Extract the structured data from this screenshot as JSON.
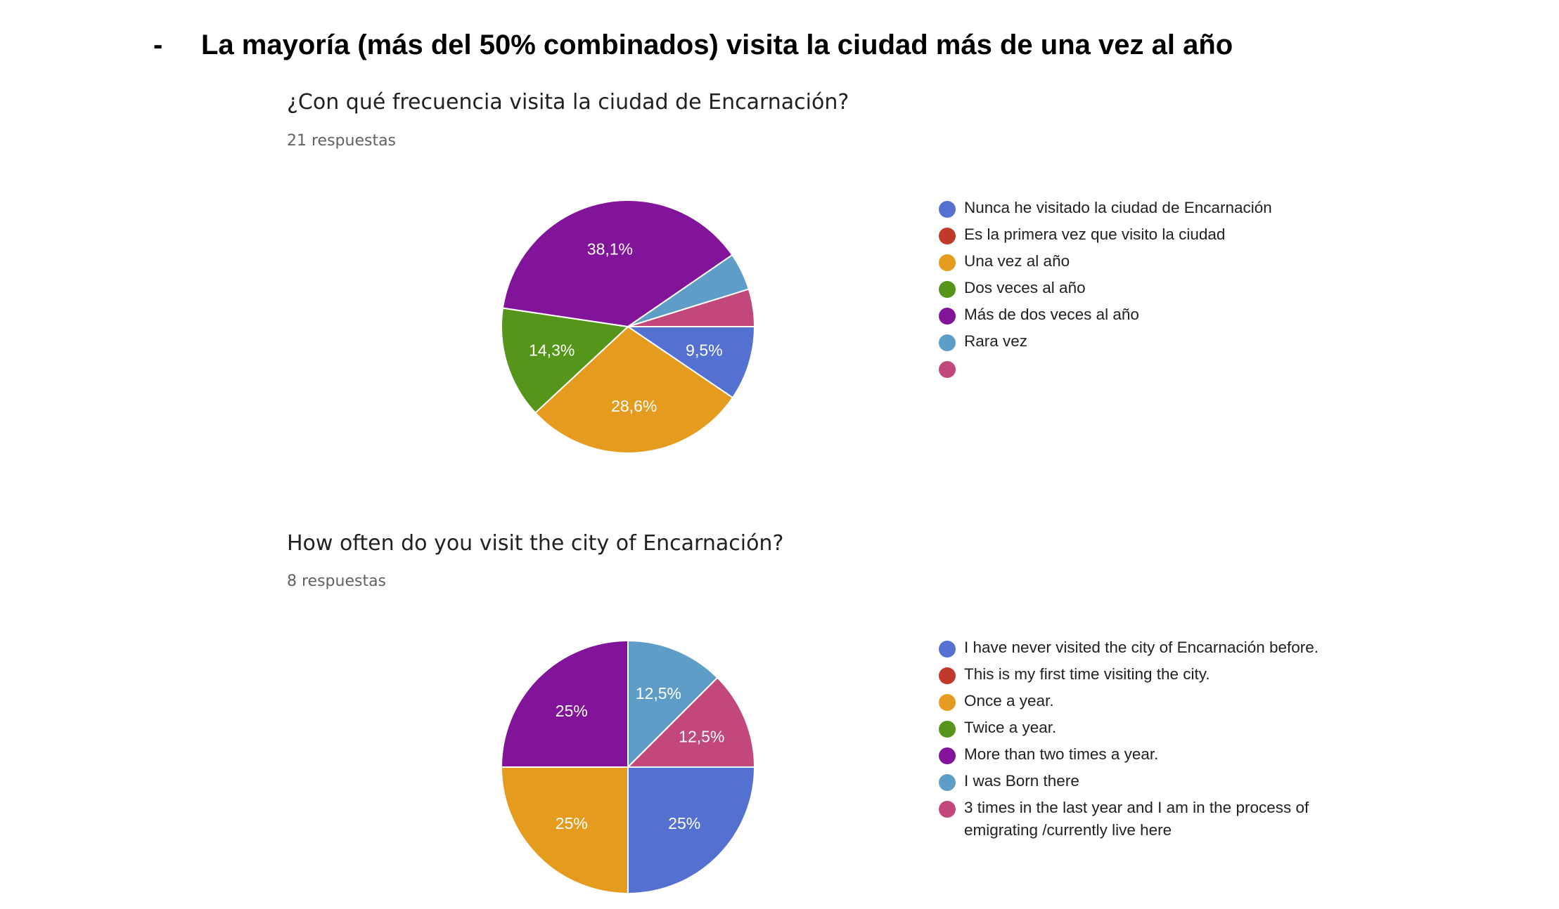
{
  "heading": {
    "bullet": "-",
    "text": "La mayoría (más del 50% combinados) visita la ciudad más de una vez al año"
  },
  "chart_data": [
    {
      "type": "pie",
      "title": "¿Con qué frecuencia visita la ciudad de Encarnación?",
      "subtitle": "21 respuestas",
      "legend_position": "right",
      "categories": [
        "Nunca he visitado la ciudad de Encarnación",
        "Es la primera vez que visito la ciudad",
        "Una vez al año",
        "Dos veces al año",
        "Más de dos veces al año",
        "Rara vez",
        ""
      ],
      "values": [
        9.5,
        0,
        28.6,
        14.3,
        38.1,
        4.8,
        4.8
      ],
      "data_labels": [
        "9,5%",
        "",
        "28,6%",
        "14,3%",
        "38,1%",
        "",
        ""
      ],
      "colors": [
        "#5470d0",
        "#c0392b",
        "#e59c1e",
        "#55961a",
        "#821499",
        "#5f9dc9",
        "#c2477a"
      ]
    },
    {
      "type": "pie",
      "title": "How often do you visit the city of Encarnación?",
      "subtitle": "8 respuestas",
      "legend_position": "right",
      "categories": [
        "I have never visited the city of Encarnación before.",
        "This is my first time visiting the city.",
        "Once a year.",
        "Twice a year.",
        "More than two times a year.",
        "I was Born there",
        "3 times in the last year and I am in the process of emigrating /currently live here"
      ],
      "values": [
        25,
        0,
        25,
        0,
        25,
        12.5,
        12.5
      ],
      "data_labels": [
        "25%",
        "",
        "25%",
        "",
        "25%",
        "12,5%",
        "12,5%"
      ],
      "colors": [
        "#5470d0",
        "#c0392b",
        "#e59c1e",
        "#55961a",
        "#821499",
        "#5f9dc9",
        "#c2477a"
      ]
    }
  ]
}
